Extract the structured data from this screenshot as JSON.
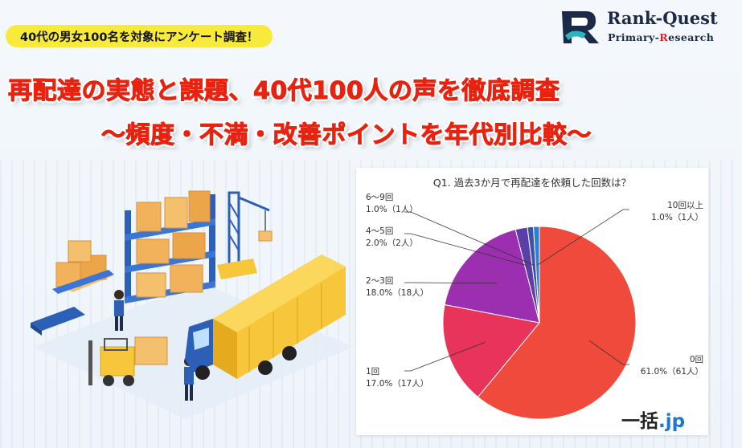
{
  "header": {
    "tagline": "40代の男女100名を対象にアンケート調査！",
    "title_line1": "再配達の実態と課題、40代100人の声を徹底調査",
    "title_line2": "〜頻度・不満・改善ポイントを年代別比較〜",
    "logo": {
      "brand": "Rank-Quest",
      "sub_parts": [
        "Primary-",
        "R",
        "esearch"
      ]
    }
  },
  "chart_data": {
    "type": "pie",
    "title": "Q1. 過去3か月で再配達を依頼した回数は？",
    "slices": [
      {
        "name": "0回",
        "value": 61.0,
        "label": "61.0%（61人）",
        "color": "#f04a3c"
      },
      {
        "name": "1回",
        "value": 17.0,
        "label": "17.0%（17人）",
        "color": "#e8335a"
      },
      {
        "name": "2〜3回",
        "value": 18.0,
        "label": "18.0%（18人）",
        "color": "#9b2fb0"
      },
      {
        "name": "4〜5回",
        "value": 2.0,
        "label": "2.0%（2人）",
        "color": "#5b3ea8"
      },
      {
        "name": "6〜9回",
        "value": 1.0,
        "label": "1.0%（1人）",
        "color": "#3d53a8"
      },
      {
        "name": "10回以上",
        "value": 1.0,
        "label": "1.0%（1人）",
        "color": "#2b7fd4"
      }
    ]
  },
  "watermark": {
    "text_main": "一括",
    "text_suffix": ".jp"
  }
}
